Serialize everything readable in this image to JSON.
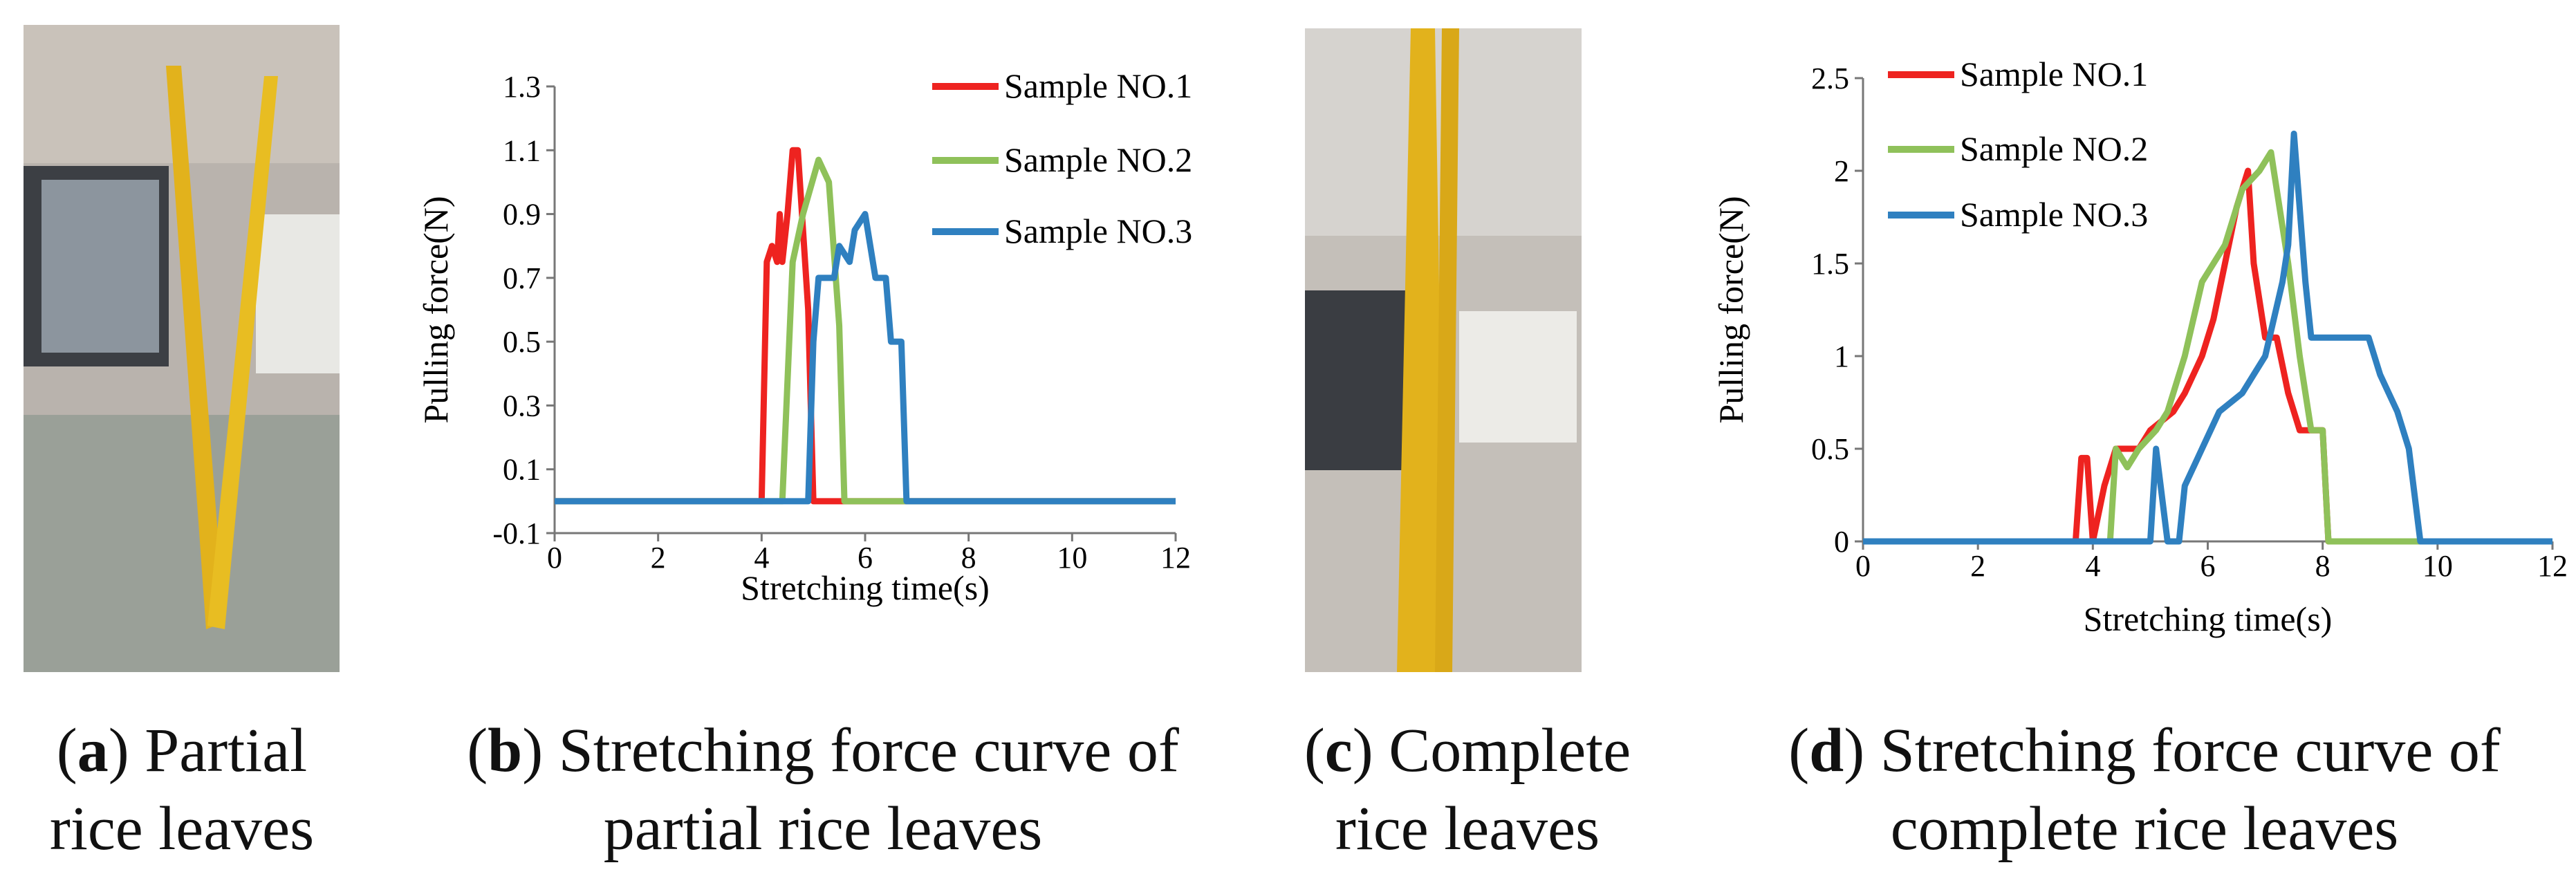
{
  "chart_data": [
    {
      "type": "line",
      "x_label": "Stretching time(s)",
      "y_label": "Pulling force(N)",
      "xlim": [
        0,
        12
      ],
      "ylim": [
        -0.1,
        1.3
      ],
      "xticks": [
        0,
        2,
        4,
        6,
        8,
        10,
        12
      ],
      "yticks": [
        -0.1,
        0.1,
        0.3,
        0.5,
        0.7,
        0.9,
        1.1,
        1.3
      ],
      "series": [
        {
          "name": "Sample NO.1",
          "color": "#ee2320",
          "x": [
            0,
            4.0,
            4.1,
            4.2,
            4.3,
            4.35,
            4.4,
            4.5,
            4.6,
            4.7,
            4.8,
            4.9,
            5.0,
            5.1,
            12
          ],
          "values": [
            0,
            0,
            0.75,
            0.8,
            0.75,
            0.9,
            0.75,
            0.9,
            1.1,
            1.1,
            0.85,
            0.6,
            0,
            0,
            0
          ]
        },
        {
          "name": "Sample NO.2",
          "color": "#8fc15a",
          "x": [
            0,
            4.4,
            4.6,
            4.8,
            5.1,
            5.3,
            5.5,
            5.6,
            12
          ],
          "values": [
            0,
            0,
            0.75,
            0.9,
            1.07,
            1.0,
            0.55,
            0,
            0
          ]
        },
        {
          "name": "Sample NO.3",
          "color": "#2f80c0",
          "x": [
            0,
            4.9,
            5.0,
            5.1,
            5.4,
            5.5,
            5.7,
            5.8,
            6.0,
            6.2,
            6.4,
            6.5,
            6.7,
            6.8,
            12
          ],
          "values": [
            0,
            0,
            0.5,
            0.7,
            0.7,
            0.8,
            0.75,
            0.85,
            0.9,
            0.7,
            0.7,
            0.5,
            0.5,
            0,
            0
          ]
        }
      ]
    },
    {
      "type": "line",
      "x_label": "Stretching time(s)",
      "y_label": "Pulling  force(N)",
      "xlim": [
        0,
        12
      ],
      "ylim": [
        0,
        2.5
      ],
      "xticks": [
        0,
        2,
        4,
        6,
        8,
        10,
        12
      ],
      "yticks": [
        0,
        0.5,
        1,
        1.5,
        2,
        2.5
      ],
      "series": [
        {
          "name": "Sample NO.1",
          "color": "#ee2320",
          "x": [
            0,
            3.7,
            3.8,
            3.9,
            4.0,
            4.2,
            4.4,
            4.8,
            5.0,
            5.4,
            5.6,
            5.9,
            6.1,
            6.3,
            6.5,
            6.7,
            6.8,
            7.0,
            7.2,
            7.4,
            7.6,
            8.0,
            8.1,
            12
          ],
          "values": [
            0,
            0,
            0.45,
            0.45,
            0,
            0.3,
            0.5,
            0.5,
            0.6,
            0.7,
            0.8,
            1.0,
            1.2,
            1.5,
            1.8,
            2.0,
            1.5,
            1.1,
            1.1,
            0.8,
            0.6,
            0.6,
            0,
            0
          ]
        },
        {
          "name": "Sample NO.2",
          "color": "#8fc15a",
          "x": [
            0,
            4.3,
            4.4,
            4.6,
            4.8,
            5.1,
            5.3,
            5.6,
            5.9,
            6.3,
            6.6,
            6.9,
            7.1,
            7.4,
            7.6,
            7.8,
            8.0,
            8.1,
            12
          ],
          "values": [
            0,
            0,
            0.5,
            0.4,
            0.5,
            0.6,
            0.7,
            1.0,
            1.4,
            1.6,
            1.9,
            2.0,
            2.1,
            1.5,
            1.0,
            0.6,
            0.6,
            0,
            0
          ]
        },
        {
          "name": "Sample NO.3",
          "color": "#2f80c0",
          "x": [
            0,
            5.0,
            5.1,
            5.3,
            5.5,
            5.6,
            5.9,
            6.2,
            6.6,
            6.8,
            7.0,
            7.3,
            7.4,
            7.5,
            7.7,
            7.8,
            8.8,
            9.0,
            9.3,
            9.5,
            9.7,
            12
          ],
          "values": [
            0,
            0,
            0.5,
            0,
            0,
            0.3,
            0.5,
            0.7,
            0.8,
            0.9,
            1.0,
            1.4,
            1.6,
            2.2,
            1.4,
            1.1,
            1.1,
            0.9,
            0.7,
            0.5,
            0,
            0
          ]
        }
      ]
    }
  ],
  "captions": [
    {
      "line1": [
        "(",
        "a",
        ") Partial"
      ],
      "line2": "rice leaves"
    },
    {
      "line1": [
        "(",
        "b",
        ") Stretching force curve of"
      ],
      "line2": "partial rice leaves"
    },
    {
      "line1": [
        "(",
        "c",
        ") Complete"
      ],
      "line2": "rice leaves"
    },
    {
      "line1": [
        "(",
        "d",
        ") Stretching force curve of"
      ],
      "line2": "complete rice leaves"
    }
  ]
}
